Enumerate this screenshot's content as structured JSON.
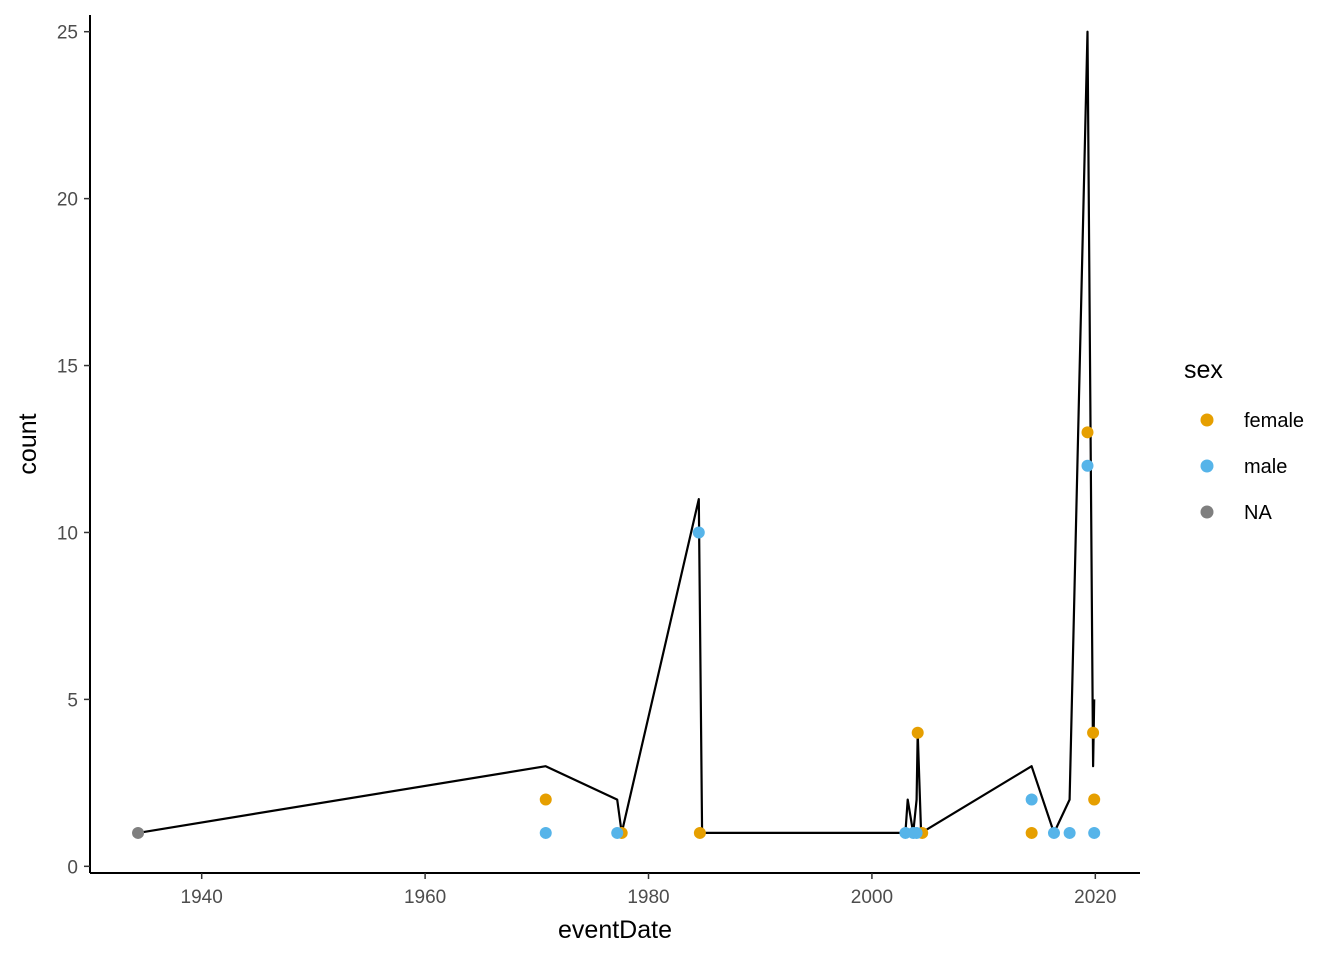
{
  "chart_data": {
    "type": "line",
    "xlabel": "eventDate",
    "ylabel": "count",
    "xlim": [
      1930,
      2024
    ],
    "ylim": [
      -0.2,
      25.5
    ],
    "x_ticks": [
      1940,
      1960,
      1980,
      2000,
      2020
    ],
    "y_ticks": [
      0,
      5,
      10,
      15,
      20,
      25
    ],
    "grid": false,
    "legend": {
      "title": "sex",
      "position": "right",
      "entries": [
        {
          "label": "female",
          "color": "#E69F00"
        },
        {
          "label": "male",
          "color": "#56B4E9"
        },
        {
          "label": "NA",
          "color": "#7F7F7F"
        }
      ]
    },
    "line_series": {
      "color": "#000000",
      "points": [
        {
          "x": 1934.3,
          "y": 1
        },
        {
          "x": 1970.8,
          "y": 3
        },
        {
          "x": 1977.2,
          "y": 2
        },
        {
          "x": 1977.6,
          "y": 1
        },
        {
          "x": 1984.5,
          "y": 11
        },
        {
          "x": 1984.8,
          "y": 1
        },
        {
          "x": 2003.0,
          "y": 1
        },
        {
          "x": 2003.2,
          "y": 2
        },
        {
          "x": 2003.7,
          "y": 1
        },
        {
          "x": 2004.0,
          "y": 2
        },
        {
          "x": 2004.1,
          "y": 4
        },
        {
          "x": 2004.4,
          "y": 1
        },
        {
          "x": 2014.3,
          "y": 3
        },
        {
          "x": 2016.3,
          "y": 1
        },
        {
          "x": 2017.7,
          "y": 2
        },
        {
          "x": 2019.3,
          "y": 25
        },
        {
          "x": 2019.8,
          "y": 3
        },
        {
          "x": 2019.9,
          "y": 5
        }
      ]
    },
    "point_series": [
      {
        "name": "female",
        "color": "#E69F00",
        "points": [
          {
            "x": 1970.8,
            "y": 2
          },
          {
            "x": 1977.6,
            "y": 1
          },
          {
            "x": 1984.6,
            "y": 1
          },
          {
            "x": 2004.1,
            "y": 4
          },
          {
            "x": 2004.5,
            "y": 1
          },
          {
            "x": 2014.3,
            "y": 1
          },
          {
            "x": 2019.3,
            "y": 13
          },
          {
            "x": 2019.8,
            "y": 4
          },
          {
            "x": 2019.9,
            "y": 2
          }
        ]
      },
      {
        "name": "male",
        "color": "#56B4E9",
        "points": [
          {
            "x": 1970.8,
            "y": 1
          },
          {
            "x": 1977.2,
            "y": 1
          },
          {
            "x": 1984.5,
            "y": 10
          },
          {
            "x": 2003.0,
            "y": 1
          },
          {
            "x": 2003.7,
            "y": 1
          },
          {
            "x": 2004.0,
            "y": 1
          },
          {
            "x": 2014.3,
            "y": 2
          },
          {
            "x": 2016.3,
            "y": 1
          },
          {
            "x": 2017.7,
            "y": 1
          },
          {
            "x": 2019.3,
            "y": 12
          },
          {
            "x": 2019.9,
            "y": 1
          }
        ]
      },
      {
        "name": "NA",
        "color": "#7F7F7F",
        "points": [
          {
            "x": 1934.3,
            "y": 1
          }
        ]
      }
    ]
  }
}
